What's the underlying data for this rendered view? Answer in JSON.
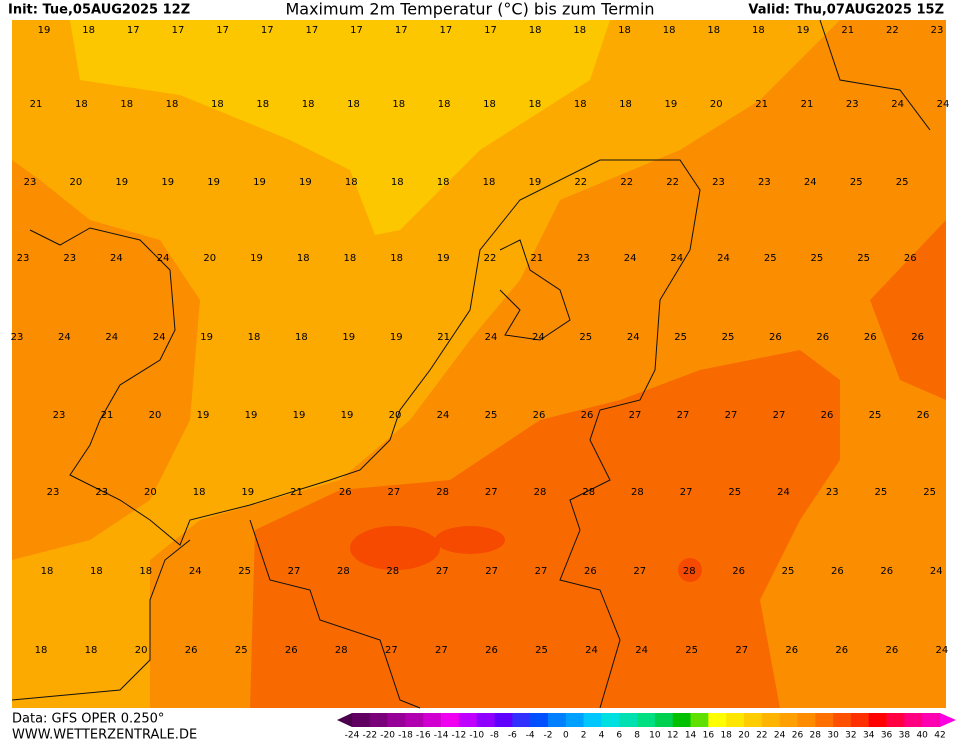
{
  "header": {
    "init": "Init: Tue,05AUG2025 12Z",
    "title": "Maximum 2m Temperatur (°C) bis zum Termin",
    "valid": "Valid: Thu,07AUG2025 15Z"
  },
  "map": {
    "rows": [
      [
        19,
        18,
        17,
        17,
        17,
        17,
        17,
        17,
        17,
        17,
        17,
        18,
        18,
        18,
        18,
        18,
        18,
        19,
        21,
        22,
        23
      ],
      [
        21,
        18,
        18,
        18,
        18,
        18,
        18,
        18,
        18,
        18,
        18,
        18,
        18,
        18,
        19,
        20,
        21,
        21,
        23,
        24,
        24
      ],
      [
        23,
        20,
        19,
        19,
        19,
        19,
        19,
        18,
        18,
        18,
        18,
        19,
        22,
        22,
        22,
        23,
        23,
        24,
        25,
        25
      ],
      [
        23,
        23,
        24,
        24,
        20,
        19,
        18,
        18,
        18,
        19,
        22,
        21,
        23,
        24,
        24,
        24,
        25,
        25,
        25,
        26
      ],
      [
        23,
        24,
        24,
        24,
        19,
        18,
        18,
        19,
        19,
        21,
        24,
        24,
        25,
        24,
        25,
        25,
        26,
        26,
        26,
        26
      ],
      [
        23,
        21,
        20,
        19,
        19,
        19,
        19,
        20,
        24,
        25,
        26,
        26,
        27,
        27,
        27,
        27,
        26,
        25,
        26
      ],
      [
        23,
        23,
        20,
        18,
        19,
        21,
        26,
        27,
        28,
        27,
        28,
        28,
        28,
        27,
        25,
        24,
        23,
        25,
        25
      ],
      [
        18,
        18,
        18,
        24,
        25,
        27,
        28,
        28,
        27,
        27,
        27,
        26,
        27,
        28,
        26,
        25,
        26,
        26,
        24
      ],
      [
        18,
        18,
        20,
        26,
        25,
        26,
        28,
        27,
        27,
        26,
        25,
        24,
        24,
        25,
        27,
        26,
        26,
        26,
        24
      ]
    ]
  },
  "legend": {
    "labels": [
      -24,
      -22,
      -20,
      -18,
      -16,
      -14,
      -12,
      -10,
      -8,
      -6,
      -4,
      -2,
      0,
      2,
      4,
      6,
      8,
      10,
      12,
      14,
      16,
      18,
      20,
      22,
      24,
      26,
      28,
      30,
      32,
      34,
      36,
      38,
      40,
      42
    ],
    "colors": [
      "#4b004b",
      "#600060",
      "#7a007a",
      "#960096",
      "#b000b0",
      "#d000d0",
      "#f000f0",
      "#c000ff",
      "#9000ff",
      "#6000ff",
      "#3030ff",
      "#0050ff",
      "#0080ff",
      "#00a0ff",
      "#00c8ff",
      "#00e0e0",
      "#00e0b0",
      "#00e080",
      "#00d050",
      "#00c000",
      "#60e000",
      "#ffff00",
      "#ffe600",
      "#ffcc00",
      "#ffb400",
      "#ffa000",
      "#ff8c00",
      "#ff7000",
      "#ff5000",
      "#ff3000",
      "#ff0000",
      "#ff0040",
      "#ff0080",
      "#ff00b0",
      "#ff00e0"
    ]
  },
  "footer": {
    "data": "Data: GFS OPER 0.250°",
    "site": "WWW.WETTERZENTRALE.DE"
  }
}
